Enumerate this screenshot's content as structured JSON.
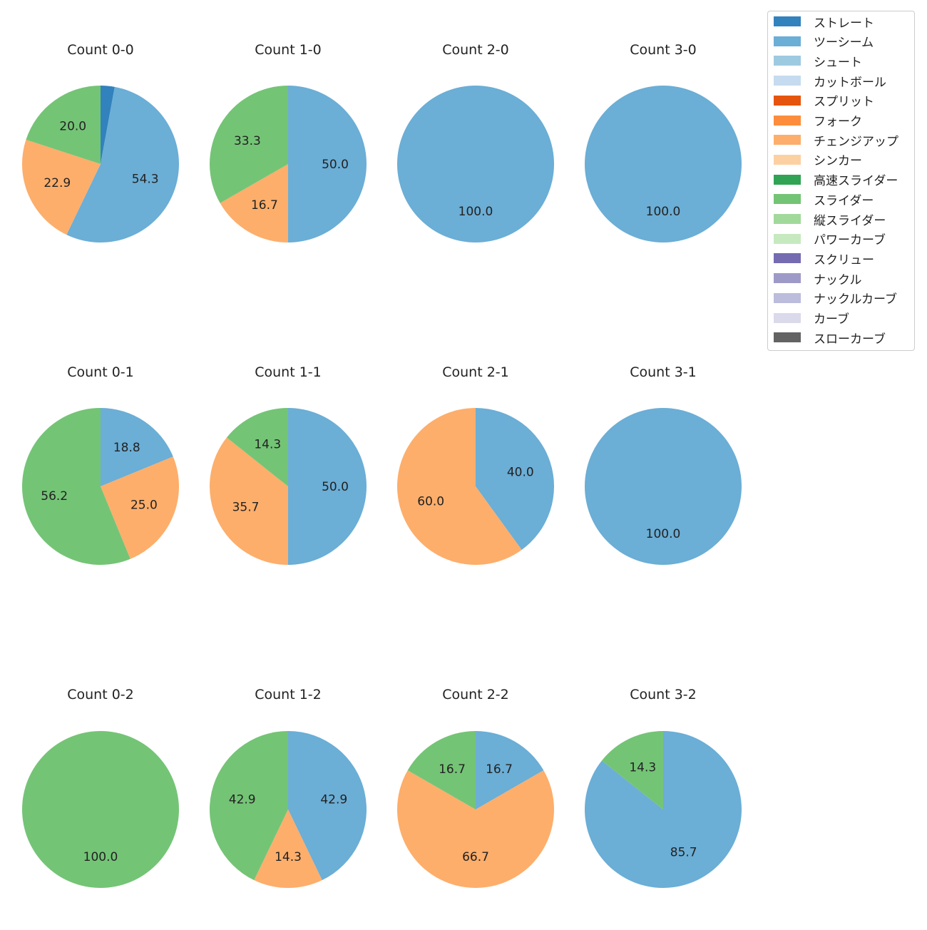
{
  "legend": [
    {
      "name": "ストレート",
      "color": "#3182bd"
    },
    {
      "name": "ツーシーム",
      "color": "#6baed6"
    },
    {
      "name": "シュート",
      "color": "#9ecae1"
    },
    {
      "name": "カットボール",
      "color": "#c6dbef"
    },
    {
      "name": "スプリット",
      "color": "#e6550d"
    },
    {
      "name": "フォーク",
      "color": "#fd8d3c"
    },
    {
      "name": "チェンジアップ",
      "color": "#fdae6b"
    },
    {
      "name": "シンカー",
      "color": "#fdd0a2"
    },
    {
      "name": "高速スライダー",
      "color": "#31a354"
    },
    {
      "name": "スライダー",
      "color": "#74c476"
    },
    {
      "name": "縦スライダー",
      "color": "#a1d99b"
    },
    {
      "name": "パワーカーブ",
      "color": "#c7e9c0"
    },
    {
      "name": "スクリュー",
      "color": "#756bb1"
    },
    {
      "name": "ナックル",
      "color": "#9e9ac8"
    },
    {
      "name": "ナックルカーブ",
      "color": "#bcbddc"
    },
    {
      "name": "カーブ",
      "color": "#dadaeb"
    },
    {
      "name": "スローカーブ",
      "color": "#636363"
    }
  ],
  "chart_data": [
    {
      "type": "pie",
      "title": "Count 0-0",
      "slices": [
        {
          "name": "ストレート",
          "value": 2.9,
          "label": ""
        },
        {
          "name": "ツーシーム",
          "value": 54.3,
          "label": "54.3"
        },
        {
          "name": "チェンジアップ",
          "value": 22.9,
          "label": "22.9"
        },
        {
          "name": "スライダー",
          "value": 20.0,
          "label": "20.0"
        }
      ]
    },
    {
      "type": "pie",
      "title": "Count 1-0",
      "slices": [
        {
          "name": "ツーシーム",
          "value": 50.0,
          "label": "50.0"
        },
        {
          "name": "チェンジアップ",
          "value": 16.7,
          "label": "16.7"
        },
        {
          "name": "スライダー",
          "value": 33.3,
          "label": "33.3"
        }
      ]
    },
    {
      "type": "pie",
      "title": "Count 2-0",
      "slices": [
        {
          "name": "ツーシーム",
          "value": 100.0,
          "label": "100.0"
        }
      ]
    },
    {
      "type": "pie",
      "title": "Count 3-0",
      "slices": [
        {
          "name": "ツーシーム",
          "value": 100.0,
          "label": "100.0"
        }
      ]
    },
    {
      "type": "pie",
      "title": "Count 0-1",
      "slices": [
        {
          "name": "ツーシーム",
          "value": 18.8,
          "label": "18.8"
        },
        {
          "name": "チェンジアップ",
          "value": 25.0,
          "label": "25.0"
        },
        {
          "name": "スライダー",
          "value": 56.2,
          "label": "56.2"
        }
      ]
    },
    {
      "type": "pie",
      "title": "Count 1-1",
      "slices": [
        {
          "name": "ツーシーム",
          "value": 50.0,
          "label": "50.0"
        },
        {
          "name": "チェンジアップ",
          "value": 35.7,
          "label": "35.7"
        },
        {
          "name": "スライダー",
          "value": 14.3,
          "label": "14.3"
        }
      ]
    },
    {
      "type": "pie",
      "title": "Count 2-1",
      "slices": [
        {
          "name": "ツーシーム",
          "value": 40.0,
          "label": "40.0"
        },
        {
          "name": "チェンジアップ",
          "value": 60.0,
          "label": "60.0"
        }
      ]
    },
    {
      "type": "pie",
      "title": "Count 3-1",
      "slices": [
        {
          "name": "ツーシーム",
          "value": 100.0,
          "label": "100.0"
        }
      ]
    },
    {
      "type": "pie",
      "title": "Count 0-2",
      "slices": [
        {
          "name": "スライダー",
          "value": 100.0,
          "label": "100.0"
        }
      ]
    },
    {
      "type": "pie",
      "title": "Count 1-2",
      "slices": [
        {
          "name": "ツーシーム",
          "value": 42.9,
          "label": "42.9"
        },
        {
          "name": "チェンジアップ",
          "value": 14.3,
          "label": "14.3"
        },
        {
          "name": "スライダー",
          "value": 42.9,
          "label": "42.9"
        }
      ]
    },
    {
      "type": "pie",
      "title": "Count 2-2",
      "slices": [
        {
          "name": "ツーシーム",
          "value": 16.7,
          "label": "16.7"
        },
        {
          "name": "チェンジアップ",
          "value": 66.7,
          "label": "66.7"
        },
        {
          "name": "スライダー",
          "value": 16.7,
          "label": "16.7"
        }
      ]
    },
    {
      "type": "pie",
      "title": "Count 3-2",
      "slices": [
        {
          "name": "ツーシーム",
          "value": 85.7,
          "label": "85.7"
        },
        {
          "name": "スライダー",
          "value": 14.3,
          "label": "14.3"
        }
      ]
    }
  ]
}
